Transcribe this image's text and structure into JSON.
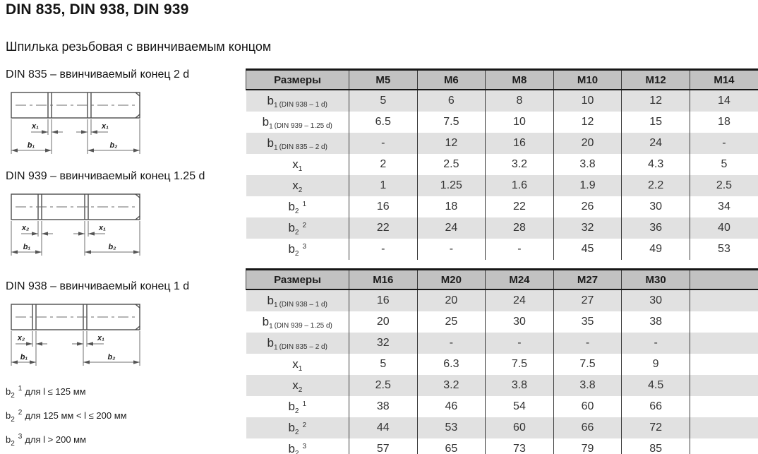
{
  "page": {
    "title": "DIN 835, DIN 938, DIN 939",
    "subtitle": "Шпилька резьбовая с ввинчиваемым концом"
  },
  "colors": {
    "header_bg": "#c2c2c2",
    "row_alt_bg": "#e1e1e1",
    "row_bg": "#ffffff",
    "border_dark": "#161616",
    "text": "#333333",
    "drawing_line": "#4c4c4c"
  },
  "diagrams": [
    {
      "caption": "DIN 835 – ввинчиваемый конец 2 d",
      "left_x_label": "x₁",
      "right_x_label": "x₁",
      "left_b_label": "b₁",
      "right_b_label": "b₂"
    },
    {
      "caption": "DIN 939 – ввинчиваемый конец 1.25 d",
      "left_x_label": "x₂",
      "right_x_label": "x₁",
      "left_b_label": "b₁",
      "right_b_label": "b₂"
    },
    {
      "caption": "DIN 938 – ввинчиваемый конец 1 d",
      "left_x_label": "x₂",
      "right_x_label": "x₁",
      "left_b_label": "b₁",
      "right_b_label": "b₂"
    }
  ],
  "footnotes": [
    {
      "base": "b",
      "sub": "2",
      "sup": "1",
      "text": "для l ≤ 125 мм"
    },
    {
      "base": "b",
      "sub": "2",
      "sup": "2",
      "text": "для 125 мм < l ≤ 200 мм"
    },
    {
      "base": "b",
      "sub": "2",
      "sup": "3",
      "text": "для l > 200 мм"
    }
  ],
  "tables": [
    {
      "header_label": "Размеры",
      "sizes": [
        "M5",
        "M6",
        "M8",
        "M10",
        "M12",
        "M14"
      ],
      "rows": [
        {
          "label": {
            "base": "b",
            "sub": "1",
            "note": "(DIN 938 – 1 d)"
          },
          "values": [
            "5",
            "6",
            "8",
            "10",
            "12",
            "14"
          ]
        },
        {
          "label": {
            "base": "b",
            "sub": "1",
            "note": "(DIN 939 – 1.25 d)"
          },
          "values": [
            "6.5",
            "7.5",
            "10",
            "12",
            "15",
            "18"
          ]
        },
        {
          "label": {
            "base": "b",
            "sub": "1",
            "note": "(DIN 835 – 2 d)"
          },
          "values": [
            "-",
            "12",
            "16",
            "20",
            "24",
            "-"
          ]
        },
        {
          "label": {
            "base": "x",
            "sub": "1"
          },
          "values": [
            "2",
            "2.5",
            "3.2",
            "3.8",
            "4.3",
            "5"
          ]
        },
        {
          "label": {
            "base": "x",
            "sub": "2"
          },
          "values": [
            "1",
            "1.25",
            "1.6",
            "1.9",
            "2.2",
            "2.5"
          ]
        },
        {
          "label": {
            "base": "b",
            "sub": "2",
            "sup": "1"
          },
          "values": [
            "16",
            "18",
            "22",
            "26",
            "30",
            "34"
          ]
        },
        {
          "label": {
            "base": "b",
            "sub": "2",
            "sup": "2"
          },
          "values": [
            "22",
            "24",
            "28",
            "32",
            "36",
            "40"
          ]
        },
        {
          "label": {
            "base": "b",
            "sub": "2",
            "sup": "3"
          },
          "values": [
            "-",
            "-",
            "-",
            "45",
            "49",
            "53"
          ]
        }
      ]
    },
    {
      "header_label": "Размеры",
      "sizes": [
        "M16",
        "M20",
        "M24",
        "M27",
        "M30",
        ""
      ],
      "rows": [
        {
          "label": {
            "base": "b",
            "sub": "1",
            "note": "(DIN 938 – 1 d)"
          },
          "values": [
            "16",
            "20",
            "24",
            "27",
            "30",
            ""
          ]
        },
        {
          "label": {
            "base": "b",
            "sub": "1",
            "note": "(DIN 939 – 1.25 d)"
          },
          "values": [
            "20",
            "25",
            "30",
            "35",
            "38",
            ""
          ]
        },
        {
          "label": {
            "base": "b",
            "sub": "1",
            "note": "(DIN 835 – 2 d)"
          },
          "values": [
            "32",
            "-",
            "-",
            "-",
            "-",
            ""
          ]
        },
        {
          "label": {
            "base": "x",
            "sub": "1"
          },
          "values": [
            "5",
            "6.3",
            "7.5",
            "7.5",
            "9",
            ""
          ]
        },
        {
          "label": {
            "base": "x",
            "sub": "2"
          },
          "values": [
            "2.5",
            "3.2",
            "3.8",
            "3.8",
            "4.5",
            ""
          ]
        },
        {
          "label": {
            "base": "b",
            "sub": "2",
            "sup": "1"
          },
          "values": [
            "38",
            "46",
            "54",
            "60",
            "66",
            ""
          ]
        },
        {
          "label": {
            "base": "b",
            "sub": "2",
            "sup": "2"
          },
          "values": [
            "44",
            "53",
            "60",
            "66",
            "72",
            ""
          ]
        },
        {
          "label": {
            "base": "b",
            "sub": "2",
            "sup": "3"
          },
          "values": [
            "57",
            "65",
            "73",
            "79",
            "85",
            ""
          ]
        }
      ]
    }
  ]
}
